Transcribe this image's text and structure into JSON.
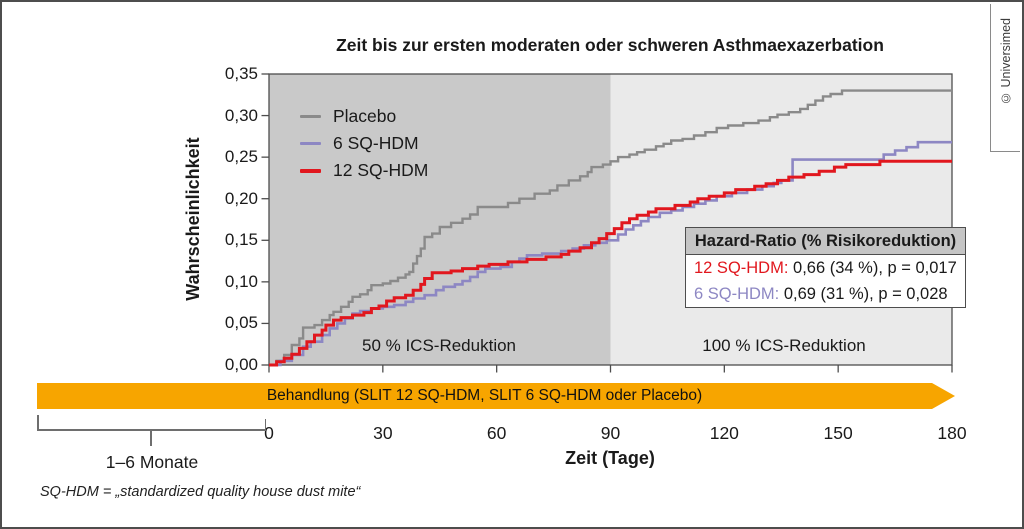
{
  "copyright": "© Universimed",
  "footnote": "SQ-HDM = „standardized quality house dust mite“",
  "bracket": {
    "label": "1–6 Monate"
  },
  "treatment_bar": {
    "label": "Behandlung (SLIT 12 SQ-HDM, SLIT 6 SQ-HDM oder Placebo)",
    "color": "#f7a500"
  },
  "hazard_box": {
    "title": "Hazard-Ratio (% Risikoreduktion)",
    "rows": [
      {
        "label": "12 SQ-HDM:",
        "value": " 0,66 (34 %), p = 0,017",
        "color": "#e1171e"
      },
      {
        "label": "6 SQ-HDM:",
        "value": " 0,69 (31 %), p = 0,028",
        "color": "#8d87c3"
      }
    ]
  },
  "chart_data": {
    "type": "line",
    "subtype": "step-after",
    "title": "Zeit bis zur ersten moderaten oder schweren Asthmaexazerbation",
    "xlabel": "Zeit (Tage)",
    "ylabel": "Wahrscheinlichkeit",
    "xlim": [
      0,
      180
    ],
    "ylim": [
      0,
      0.35
    ],
    "grid": false,
    "legend_position": "top-left",
    "xticks": {
      "values": [
        0,
        30,
        60,
        90,
        120,
        150,
        180
      ],
      "labels": [
        "0",
        "30",
        "60",
        "90",
        "120",
        "150",
        "180"
      ]
    },
    "yticks": {
      "values": [
        0,
        0.05,
        0.1,
        0.15,
        0.2,
        0.25,
        0.3,
        0.35
      ],
      "labels": [
        "0,00",
        "0,05",
        "0,10",
        "0,15",
        "0,20",
        "0,25",
        "0,30",
        "0,35"
      ]
    },
    "regions": [
      {
        "label": "50 % ICS-Reduktion",
        "from": 0,
        "to": 90,
        "color": "#c9c9c9"
      },
      {
        "label": "100 % ICS-Reduktion",
        "from": 90,
        "to": 180,
        "color": "#eaeaea"
      }
    ],
    "frame_color": "#4d4d4d",
    "series": [
      {
        "name": "Placebo",
        "color": "#8a8a8a",
        "points": [
          [
            0,
            0
          ],
          [
            2,
            0.005
          ],
          [
            4,
            0.012
          ],
          [
            6,
            0.024
          ],
          [
            8,
            0.032
          ],
          [
            9,
            0.045
          ],
          [
            12,
            0.048
          ],
          [
            14,
            0.054
          ],
          [
            16,
            0.06
          ],
          [
            17,
            0.064
          ],
          [
            19,
            0.07
          ],
          [
            21,
            0.076
          ],
          [
            22,
            0.082
          ],
          [
            24,
            0.085
          ],
          [
            26,
            0.09
          ],
          [
            27,
            0.096
          ],
          [
            30,
            0.098
          ],
          [
            32,
            0.101
          ],
          [
            34,
            0.105
          ],
          [
            36,
            0.109
          ],
          [
            37,
            0.112
          ],
          [
            38,
            0.122
          ],
          [
            39,
            0.131
          ],
          [
            40,
            0.14
          ],
          [
            41,
            0.154
          ],
          [
            43,
            0.158
          ],
          [
            45,
            0.166
          ],
          [
            48,
            0.171
          ],
          [
            51,
            0.176
          ],
          [
            53,
            0.181
          ],
          [
            55,
            0.19
          ],
          [
            63,
            0.195
          ],
          [
            66,
            0.2
          ],
          [
            70,
            0.206
          ],
          [
            74,
            0.21
          ],
          [
            76,
            0.216
          ],
          [
            79,
            0.222
          ],
          [
            82,
            0.227
          ],
          [
            84,
            0.232
          ],
          [
            85,
            0.238
          ],
          [
            88,
            0.241
          ],
          [
            90,
            0.245
          ],
          [
            92,
            0.25
          ],
          [
            95,
            0.253
          ],
          [
            97,
            0.256
          ],
          [
            99,
            0.259
          ],
          [
            102,
            0.263
          ],
          [
            104,
            0.266
          ],
          [
            106,
            0.27
          ],
          [
            109,
            0.272
          ],
          [
            112,
            0.276
          ],
          [
            115,
            0.28
          ],
          [
            118,
            0.285
          ],
          [
            121,
            0.288
          ],
          [
            125,
            0.291
          ],
          [
            129,
            0.294
          ],
          [
            132,
            0.298
          ],
          [
            134,
            0.301
          ],
          [
            137,
            0.304
          ],
          [
            140,
            0.308
          ],
          [
            142,
            0.313
          ],
          [
            144,
            0.318
          ],
          [
            146,
            0.323
          ],
          [
            148,
            0.326
          ],
          [
            151,
            0.33
          ],
          [
            180,
            0.33
          ]
        ]
      },
      {
        "name": "6 SQ-HDM",
        "color": "#8d87c3",
        "points": [
          [
            0,
            0
          ],
          [
            3,
            0.005
          ],
          [
            6,
            0.012
          ],
          [
            9,
            0.022
          ],
          [
            11,
            0.028
          ],
          [
            14,
            0.036
          ],
          [
            16,
            0.044
          ],
          [
            18,
            0.05
          ],
          [
            20,
            0.056
          ],
          [
            22,
            0.062
          ],
          [
            24,
            0.065
          ],
          [
            27,
            0.068
          ],
          [
            30,
            0.07
          ],
          [
            33,
            0.072
          ],
          [
            36,
            0.076
          ],
          [
            38,
            0.08
          ],
          [
            41,
            0.084
          ],
          [
            44,
            0.09
          ],
          [
            46,
            0.094
          ],
          [
            49,
            0.097
          ],
          [
            51,
            0.101
          ],
          [
            53,
            0.106
          ],
          [
            55,
            0.112
          ],
          [
            57,
            0.116
          ],
          [
            61,
            0.118
          ],
          [
            64,
            0.124
          ],
          [
            66,
            0.128
          ],
          [
            68,
            0.132
          ],
          [
            72,
            0.134
          ],
          [
            77,
            0.137
          ],
          [
            80,
            0.14
          ],
          [
            83,
            0.144
          ],
          [
            86,
            0.147
          ],
          [
            89,
            0.15
          ],
          [
            92,
            0.157
          ],
          [
            94,
            0.163
          ],
          [
            96,
            0.168
          ],
          [
            98,
            0.173
          ],
          [
            100,
            0.178
          ],
          [
            103,
            0.183
          ],
          [
            106,
            0.186
          ],
          [
            109,
            0.19
          ],
          [
            112,
            0.194
          ],
          [
            115,
            0.198
          ],
          [
            118,
            0.203
          ],
          [
            122,
            0.207
          ],
          [
            126,
            0.211
          ],
          [
            130,
            0.215
          ],
          [
            133,
            0.219
          ],
          [
            135,
            0.222
          ],
          [
            138,
            0.247
          ],
          [
            162,
            0.253
          ],
          [
            165,
            0.258
          ],
          [
            168,
            0.262
          ],
          [
            171,
            0.268
          ],
          [
            180,
            0.268
          ]
        ]
      },
      {
        "name": "12 SQ-HDM",
        "color": "#e1171e",
        "points": [
          [
            0,
            0
          ],
          [
            2,
            0.004
          ],
          [
            4,
            0.008
          ],
          [
            6,
            0.013
          ],
          [
            8,
            0.02
          ],
          [
            10,
            0.028
          ],
          [
            12,
            0.036
          ],
          [
            14,
            0.042
          ],
          [
            15,
            0.048
          ],
          [
            17,
            0.054
          ],
          [
            19,
            0.057
          ],
          [
            22,
            0.06
          ],
          [
            25,
            0.063
          ],
          [
            27,
            0.068
          ],
          [
            29,
            0.071
          ],
          [
            31,
            0.077
          ],
          [
            33,
            0.081
          ],
          [
            36,
            0.084
          ],
          [
            38,
            0.09
          ],
          [
            40,
            0.097
          ],
          [
            41,
            0.104
          ],
          [
            43,
            0.111
          ],
          [
            48,
            0.113
          ],
          [
            51,
            0.116
          ],
          [
            55,
            0.119
          ],
          [
            58,
            0.121
          ],
          [
            63,
            0.124
          ],
          [
            68,
            0.127
          ],
          [
            73,
            0.13
          ],
          [
            77,
            0.133
          ],
          [
            79,
            0.137
          ],
          [
            82,
            0.141
          ],
          [
            85,
            0.147
          ],
          [
            87,
            0.152
          ],
          [
            89,
            0.158
          ],
          [
            91,
            0.164
          ],
          [
            93,
            0.171
          ],
          [
            95,
            0.176
          ],
          [
            97,
            0.18
          ],
          [
            100,
            0.184
          ],
          [
            102,
            0.188
          ],
          [
            107,
            0.192
          ],
          [
            111,
            0.196
          ],
          [
            113,
            0.2
          ],
          [
            116,
            0.203
          ],
          [
            120,
            0.207
          ],
          [
            123,
            0.211
          ],
          [
            128,
            0.215
          ],
          [
            131,
            0.218
          ],
          [
            134,
            0.222
          ],
          [
            137,
            0.226
          ],
          [
            141,
            0.229
          ],
          [
            145,
            0.233
          ],
          [
            149,
            0.238
          ],
          [
            152,
            0.241
          ],
          [
            161,
            0.245
          ],
          [
            180,
            0.245
          ]
        ]
      }
    ]
  }
}
